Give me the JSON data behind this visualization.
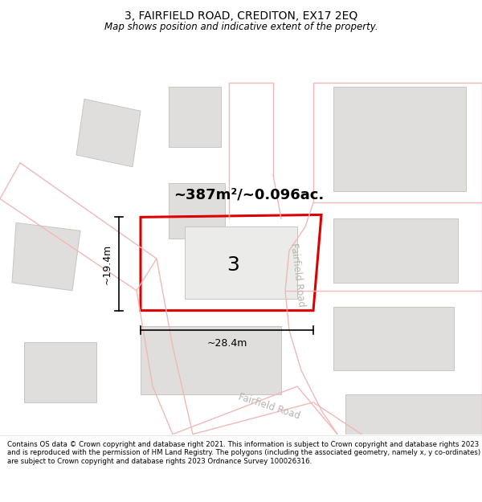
{
  "title": "3, FAIRFIELD ROAD, CREDITON, EX17 2EQ",
  "subtitle": "Map shows position and indicative extent of the property.",
  "footer": "Contains OS data © Crown copyright and database right 2021. This information is subject to Crown copyright and database rights 2023 and is reproduced with the permission of HM Land Registry. The polygons (including the associated geometry, namely x, y co-ordinates) are subject to Crown copyright and database rights 2023 Ordnance Survey 100026316.",
  "map_bg": "#f7f6f5",
  "road_line_color": "#f0b8b8",
  "building_fill": "#e0dedd",
  "building_edge": "#c8c4c0",
  "plot_color": "#dd0000",
  "area_text": "~387m²/~0.096ac.",
  "number_text": "3",
  "dim_width": "~28.4m",
  "dim_height": "~19.4m",
  "road_label_color": "#b8b4b0",
  "road_label_1": "Fairfield Road",
  "road_label_2": "Fairfield Road"
}
